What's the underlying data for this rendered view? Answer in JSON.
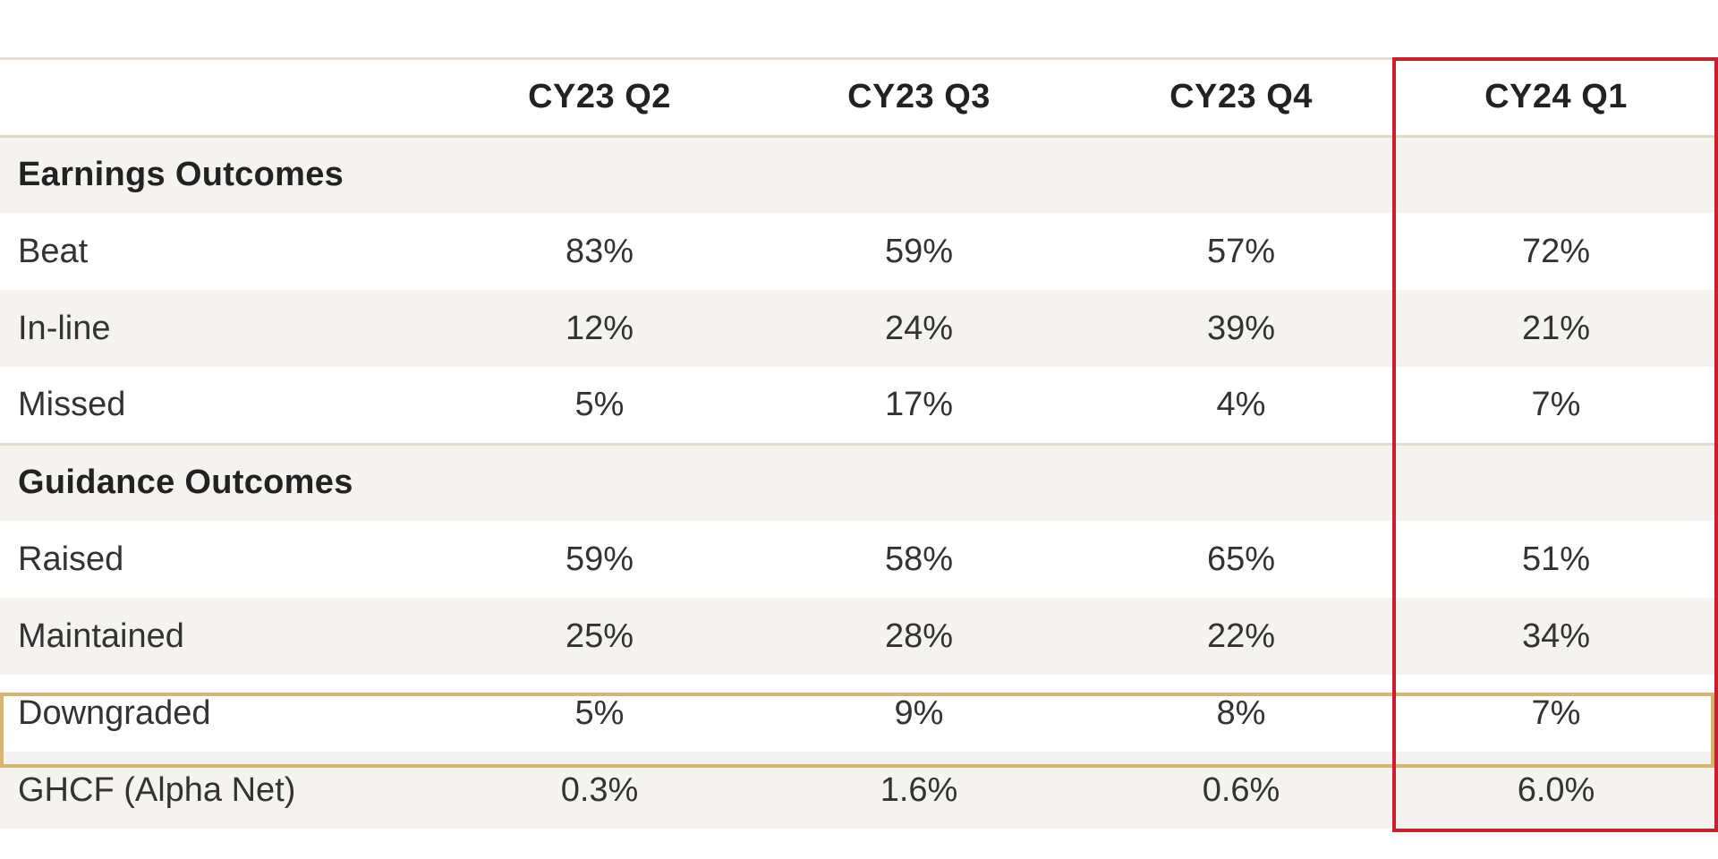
{
  "table": {
    "columns": [
      "",
      "CY23 Q2",
      "CY23 Q3",
      "CY23 Q4",
      "CY24 Q1"
    ],
    "sections": {
      "earnings": {
        "title": "Earnings Outcomes",
        "rows": [
          {
            "label": "Beat",
            "values": [
              "83%",
              "59%",
              "57%",
              "72%"
            ]
          },
          {
            "label": "In-line",
            "values": [
              "12%",
              "24%",
              "39%",
              "21%"
            ]
          },
          {
            "label": "Missed",
            "values": [
              "5%",
              "17%",
              "4%",
              "7%"
            ]
          }
        ]
      },
      "guidance": {
        "title": "Guidance Outcomes",
        "rows": [
          {
            "label": "Raised",
            "values": [
              "59%",
              "58%",
              "65%",
              "51%"
            ]
          },
          {
            "label": "Maintained",
            "values": [
              "25%",
              "28%",
              "22%",
              "34%"
            ]
          },
          {
            "label": "Downgraded",
            "values": [
              "5%",
              "9%",
              "8%",
              "7%"
            ]
          }
        ]
      }
    },
    "summary_row": {
      "label": "GHCF (Alpha Net)",
      "values": [
        "0.3%",
        "1.6%",
        "0.6%",
        "6.0%"
      ]
    }
  },
  "highlight": {
    "column": "CY24 Q1",
    "column_box_color": "#c8202c",
    "summary_row_box_color": "#d9b574"
  }
}
